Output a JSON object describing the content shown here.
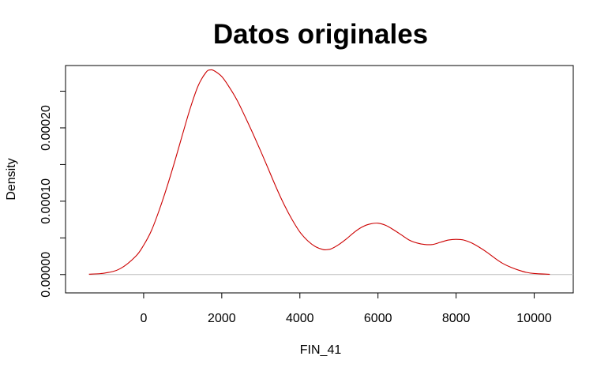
{
  "chart_data": {
    "type": "line",
    "title": "Datos originales",
    "xlabel": "FIN_41",
    "ylabel": "Density",
    "xlim": [
      -2000,
      11000
    ],
    "ylim": [
      -2.5e-05,
      0.000285
    ],
    "x_ticks": [
      0,
      2000,
      4000,
      6000,
      8000,
      10000
    ],
    "x_tick_labels": [
      "0",
      "2000",
      "4000",
      "6000",
      "8000",
      "10000"
    ],
    "y_ticks": [
      0,
      5e-05,
      0.0001,
      0.00015,
      0.0002,
      0.00025
    ],
    "y_tick_labels": [
      "0.00000",
      "",
      "0.00010",
      "",
      "0.00020",
      ""
    ],
    "baseline": 0,
    "grid": false,
    "colors": {
      "line": "#cc0000",
      "baseline": "#bebebe",
      "axis": "#000000"
    },
    "series": [
      {
        "x": [
          -1400,
          -1000,
          -600,
          -200,
          0,
          200,
          400,
          600,
          800,
          1000,
          1200,
          1400,
          1600,
          1700,
          1800,
          2000,
          2200,
          2400,
          2600,
          2800,
          3000,
          3200,
          3400,
          3600,
          3800,
          4000,
          4200,
          4400,
          4600,
          4700,
          4800,
          5000,
          5200,
          5400,
          5600,
          5800,
          6000,
          6200,
          6400,
          6600,
          6800,
          7000,
          7200,
          7400,
          7600,
          7800,
          8000,
          8200,
          8400,
          8600,
          8800,
          9000,
          9200,
          9400,
          9600,
          9800,
          10000,
          10400
        ],
        "y": [
          5e-07,
          2e-06,
          8e-06,
          2.5e-05,
          4e-05,
          6e-05,
          8.8e-05,
          0.00012,
          0.000155,
          0.000192,
          0.000228,
          0.000258,
          0.000276,
          0.000279,
          0.000278,
          0.00027,
          0.000255,
          0.000237,
          0.000215,
          0.000192,
          0.000168,
          0.000143,
          0.000118,
          9.5e-05,
          7.5e-05,
          5.8e-05,
          4.6e-05,
          3.8e-05,
          3.4e-05,
          3.4e-05,
          3.5e-05,
          4.1e-05,
          4.9e-05,
          5.8e-05,
          6.5e-05,
          6.9e-05,
          7e-05,
          6.7e-05,
          6.1e-05,
          5.4e-05,
          4.7e-05,
          4.3e-05,
          4.1e-05,
          4.1e-05,
          4.4e-05,
          4.7e-05,
          4.8e-05,
          4.7e-05,
          4.3e-05,
          3.7e-05,
          3e-05,
          2.2e-05,
          1.5e-05,
          1e-05,
          6e-06,
          3e-06,
          1.5e-06,
          3e-07
        ]
      }
    ]
  }
}
